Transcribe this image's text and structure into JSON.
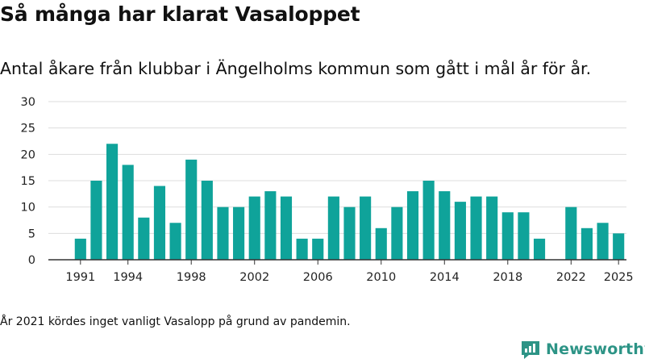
{
  "header": {
    "title": "Så många har klarat Vasaloppet",
    "subtitle": "Antal åkare från klubbar i Ängelholms kommun som gått i mål år för år."
  },
  "footnote": "År 2021 kördes inget vanligt Vasalopp på grund av pandemin.",
  "brand": {
    "name": "Newsworthy",
    "icon": "newsworthy-logo-icon",
    "color": "#2d9486"
  },
  "colors": {
    "bar": "#0fa39a",
    "grid": "#dddddd",
    "axis": "#333333"
  },
  "chart_data": {
    "type": "bar",
    "title": "Så många har klarat Vasaloppet",
    "xlabel": "",
    "ylabel": "",
    "ylim": [
      0,
      30
    ],
    "yticks": [
      0,
      5,
      10,
      15,
      20,
      25,
      30
    ],
    "xticks": [
      1991,
      1994,
      1998,
      2002,
      2006,
      2010,
      2014,
      2018,
      2022,
      2025
    ],
    "grid": true,
    "categories": [
      1991,
      1992,
      1993,
      1994,
      1995,
      1996,
      1997,
      1998,
      1999,
      2000,
      2001,
      2002,
      2003,
      2004,
      2005,
      2006,
      2007,
      2008,
      2009,
      2010,
      2011,
      2012,
      2013,
      2014,
      2015,
      2016,
      2017,
      2018,
      2019,
      2020,
      2021,
      2022,
      2023,
      2024,
      2025
    ],
    "values": [
      4,
      15,
      22,
      18,
      8,
      14,
      7,
      19,
      15,
      10,
      10,
      12,
      13,
      12,
      4,
      4,
      12,
      10,
      12,
      6,
      10,
      13,
      15,
      13,
      11,
      12,
      12,
      9,
      9,
      4,
      null,
      10,
      6,
      7,
      5
    ]
  }
}
